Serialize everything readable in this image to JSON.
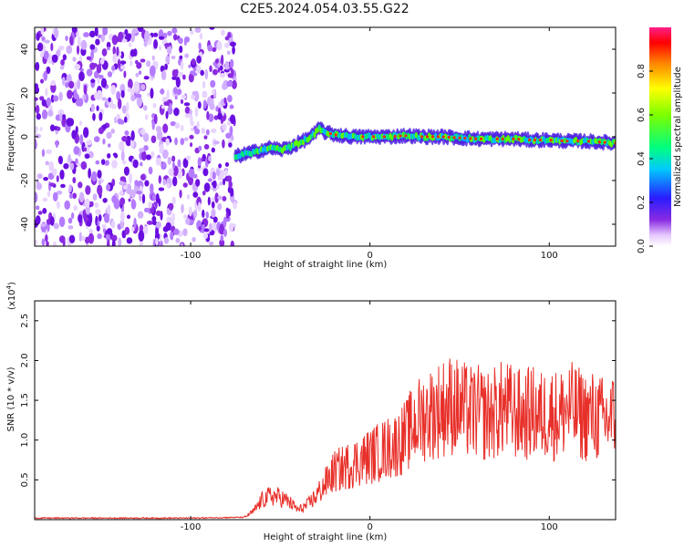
{
  "title": "C2E5.2024.054.03.55.G22",
  "chart_data": [
    {
      "type": "heatmap",
      "xlabel": "Height of straight line (km)",
      "ylabel": "Frequency (Hz)",
      "xlim": [
        -187,
        137
      ],
      "ylim": [
        -50,
        50
      ],
      "xticks": [
        -100,
        0,
        100
      ],
      "xtick_labels": [
        "-100",
        "0",
        "100"
      ],
      "yticks": [
        -40,
        -20,
        0,
        20,
        40
      ],
      "ytick_labels": [
        "-40",
        "-20",
        "0",
        "20",
        "40"
      ],
      "noise_region_x": [
        -187,
        -75
      ],
      "signal_track": {
        "x": [
          -75,
          -70,
          -65,
          -60,
          -55,
          -50,
          -45,
          -40,
          -35,
          -30,
          -28,
          -25,
          -20,
          -15,
          -10,
          -5,
          0,
          10,
          20,
          30,
          40,
          50,
          60,
          70,
          80,
          90,
          100,
          110,
          120,
          130,
          137
        ],
        "frequency_hz": [
          -9,
          -8,
          -7,
          -6,
          -5,
          -6,
          -5,
          -3,
          -1,
          2,
          4,
          2,
          1,
          0.5,
          0,
          0,
          0,
          0,
          0.5,
          0,
          0,
          -0.5,
          -1,
          -1,
          -1,
          -1.5,
          -1.5,
          -2,
          -2,
          -2.5,
          -3
        ]
      },
      "colorbar": {
        "label": "Normalized spectral amplitude",
        "range": [
          0,
          1
        ],
        "ticks": [
          0.0,
          0.2,
          0.4,
          0.6,
          0.8
        ],
        "tick_labels": [
          "0.0",
          "0.2",
          "0.4",
          "0.6",
          "0.8"
        ]
      }
    },
    {
      "type": "line",
      "xlabel": "Height of straight line (km)",
      "ylabel": "SNR (10 * v/v)",
      "yexponent_label": "(x10",
      "yexponent_power": "4",
      "yexponent_close": ")",
      "xlim": [
        -187,
        137
      ],
      "ylim": [
        0,
        27500
      ],
      "xticks": [
        -100,
        0,
        100
      ],
      "xtick_labels": [
        "-100",
        "0",
        "100"
      ],
      "yticks": [
        5000,
        10000,
        15000,
        20000,
        25000
      ],
      "ytick_labels": [
        "0.5",
        "1.0",
        "1.5",
        "2.0",
        "2.5"
      ],
      "color": "#e8302a",
      "x": [
        -187,
        -150,
        -100,
        -70,
        -65,
        -60,
        -55,
        -50,
        -45,
        -40,
        -35,
        -30,
        -25,
        -20,
        -15,
        -10,
        -5,
        0,
        5,
        10,
        15,
        20,
        25,
        30,
        35,
        40,
        45,
        50,
        55,
        60,
        65,
        70,
        75,
        80,
        85,
        90,
        95,
        100,
        105,
        110,
        115,
        120,
        125,
        130,
        137
      ],
      "y": [
        200,
        200,
        200,
        300,
        1000,
        2500,
        3000,
        2800,
        2200,
        1200,
        1800,
        3000,
        4500,
        6000,
        6500,
        7000,
        7500,
        8000,
        8500,
        9000,
        9500,
        10500,
        12000,
        13000,
        13500,
        14000,
        14500,
        14000,
        13500,
        13500,
        13000,
        13500,
        14000,
        13500,
        13000,
        13500,
        13000,
        13500,
        13000,
        14000,
        13500,
        13000,
        13000,
        12500,
        13000
      ]
    }
  ]
}
